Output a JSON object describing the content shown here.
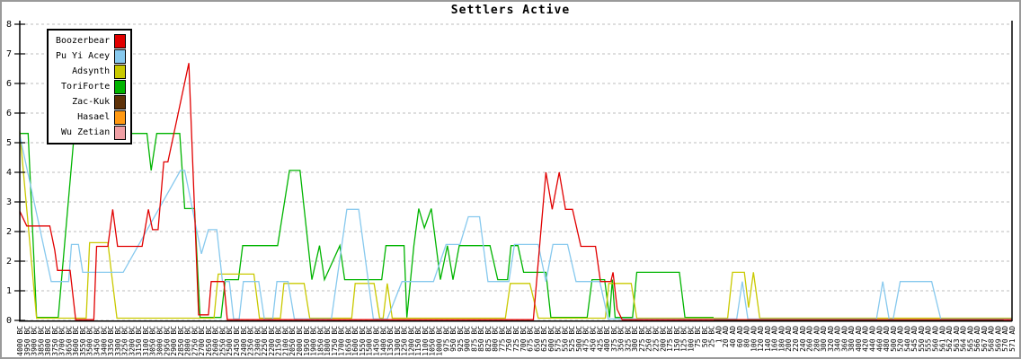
{
  "title": "Settlers Active",
  "legend": [
    {
      "name": "Boozerbear",
      "color": "#e10000"
    },
    {
      "name": "Pu Yi Acey",
      "color": "#87c9ee"
    },
    {
      "name": "Adsynth",
      "color": "#c9c900"
    },
    {
      "name": "ToriForte",
      "color": "#00b400"
    },
    {
      "name": "Zac-Kuk",
      "color": "#5e3209"
    },
    {
      "name": "Hasael",
      "color": "#ff9912"
    },
    {
      "name": "Wu Zetian",
      "color": "#f0a0a5"
    }
  ],
  "chart_data": {
    "type": "line",
    "title": "Settlers Active",
    "ylim": [
      0,
      8
    ],
    "grid": "horizontal-dashed",
    "legend_position": "top-left-inside",
    "y_tick_values": [
      0,
      0.8,
      1.6,
      2.4,
      3.2,
      4.0,
      4.8,
      5.6,
      6.4,
      7.2,
      8.0
    ],
    "y_tick_labels": [
      "0",
      "1",
      "2",
      "2",
      "3",
      "4",
      "5",
      "6",
      "6",
      "7",
      "8"
    ],
    "x_labels": [
      "4000 BC",
      "3950 BC",
      "3900 BC",
      "3850 BC",
      "3800 BC",
      "3750 BC",
      "3700 BC",
      "3650 BC",
      "3600 BC",
      "3550 BC",
      "3500 BC",
      "3450 BC",
      "3400 BC",
      "3350 BC",
      "3300 BC",
      "3250 BC",
      "3200 BC",
      "3150 BC",
      "3100 BC",
      "3050 BC",
      "3000 BC",
      "2950 BC",
      "2900 BC",
      "2850 BC",
      "2800 BC",
      "2750 BC",
      "2700 BC",
      "2650 BC",
      "2600 BC",
      "2550 BC",
      "2500 BC",
      "2450 BC",
      "2400 BC",
      "2350 BC",
      "2300 BC",
      "2250 BC",
      "2200 BC",
      "2150 BC",
      "2100 BC",
      "2050 BC",
      "2000 BC",
      "1950 BC",
      "1900 BC",
      "1850 BC",
      "1800 BC",
      "1750 BC",
      "1700 BC",
      "1650 BC",
      "1600 BC",
      "1550 BC",
      "1500 BC",
      "1450 BC",
      "1400 BC",
      "1350 BC",
      "1300 BC",
      "1250 BC",
      "1200 BC",
      "1150 BC",
      "1100 BC",
      "1050 BC",
      "1000 BC",
      "975 BC",
      "950 BC",
      "925 BC",
      "900 BC",
      "875 BC",
      "850 BC",
      "825 BC",
      "800 BC",
      "775 BC",
      "750 BC",
      "725 BC",
      "700 BC",
      "675 BC",
      "650 BC",
      "625 BC",
      "600 BC",
      "575 BC",
      "550 BC",
      "525 BC",
      "500 BC",
      "475 BC",
      "450 BC",
      "425 BC",
      "400 BC",
      "375 BC",
      "350 BC",
      "325 BC",
      "300 BC",
      "275 BC",
      "250 BC",
      "225 BC",
      "200 BC",
      "175 BC",
      "150 BC",
      "125 BC",
      "100 BC",
      "75 BC",
      "50 BC",
      "25 BC",
      "1 AD",
      "20 AD",
      "40 AD",
      "60 AD",
      "80 AD",
      "100 AD",
      "120 AD",
      "140 AD",
      "160 AD",
      "180 AD",
      "200 AD",
      "220 AD",
      "240 AD",
      "260 AD",
      "280 AD",
      "300 AD",
      "320 AD",
      "340 AD",
      "360 AD",
      "380 AD",
      "400 AD",
      "420 AD",
      "440 AD",
      "460 AD",
      "480 AD",
      "500 AD",
      "520 AD",
      "540 AD",
      "545 AD",
      "550 AD",
      "555 AD",
      "560 AD",
      "561 AD",
      "562 AD",
      "563 AD",
      "564 AD",
      "565 AD",
      "566 AD",
      "567 AD",
      "568 AD",
      "569 AD",
      "570 AD",
      "571 AD"
    ],
    "series": [
      {
        "name": "ToriForte",
        "color": "#00b400",
        "points": [
          [
            0,
            5.05
          ],
          [
            1.2,
            5.05
          ],
          [
            2.4,
            0.08
          ],
          [
            5.5,
            0.08
          ],
          [
            7.8,
            5.05
          ],
          [
            18.2,
            5.05
          ],
          [
            18.8,
            4.05
          ],
          [
            19.6,
            5.05
          ],
          [
            22.9,
            5.05
          ],
          [
            23.6,
            3.02
          ],
          [
            25,
            3.02
          ],
          [
            25.8,
            0.08
          ],
          [
            28.8,
            0.08
          ],
          [
            29.4,
            1.1
          ],
          [
            31.3,
            1.1
          ],
          [
            31.9,
            2.02
          ],
          [
            36.9,
            2.02
          ],
          [
            38.6,
            4.05
          ],
          [
            40.1,
            4.05
          ],
          [
            41.8,
            1.1
          ],
          [
            42.9,
            2.02
          ],
          [
            43.6,
            1.1
          ],
          [
            45.8,
            2.02
          ],
          [
            46.5,
            1.1
          ],
          [
            51.8,
            1.1
          ],
          [
            52.4,
            2.02
          ],
          [
            55,
            2.02
          ],
          [
            55.4,
            0.08
          ],
          [
            56.4,
            2.02
          ],
          [
            57.1,
            3.02
          ],
          [
            57.9,
            2.5
          ],
          [
            58.9,
            3.02
          ],
          [
            60.2,
            1.1
          ],
          [
            61.2,
            2.02
          ],
          [
            62,
            1.1
          ],
          [
            62.9,
            2.02
          ],
          [
            67.3,
            2.02
          ],
          [
            68.4,
            1.1
          ],
          [
            69.8,
            1.1
          ],
          [
            70.3,
            2.02
          ],
          [
            71.3,
            2.02
          ],
          [
            72.1,
            1.3
          ],
          [
            75.3,
            1.3
          ],
          [
            76,
            0.08
          ],
          [
            81.2,
            0.08
          ],
          [
            81.9,
            1.1
          ],
          [
            83.7,
            1.1
          ],
          [
            84.4,
            0.08
          ],
          [
            84.8,
            1.1
          ],
          [
            85.2,
            0.08
          ],
          [
            87.7,
            0.08
          ],
          [
            88.3,
            1.3
          ],
          [
            94.4,
            1.3
          ],
          [
            95.2,
            0.08
          ],
          [
            99.3,
            0.08
          ]
        ]
      },
      {
        "name": "Adsynth",
        "color": "#c9c900",
        "points": [
          [
            0,
            5.1
          ],
          [
            2.4,
            0.06
          ],
          [
            9.5,
            0.06
          ],
          [
            10,
            2.1
          ],
          [
            12.6,
            2.1
          ],
          [
            13.3,
            1.0
          ],
          [
            13.9,
            0.06
          ],
          [
            27.8,
            0.06
          ],
          [
            28.4,
            1.25
          ],
          [
            33.5,
            1.25
          ],
          [
            34.3,
            0.06
          ],
          [
            37.3,
            0.06
          ],
          [
            37.8,
            1.0
          ],
          [
            40.7,
            1.0
          ],
          [
            41.5,
            0.06
          ],
          [
            47.5,
            0.06
          ],
          [
            48,
            1.0
          ],
          [
            50.7,
            1.0
          ],
          [
            51.5,
            0.06
          ],
          [
            52,
            0.06
          ],
          [
            52.6,
            1.0
          ],
          [
            53.3,
            0.06
          ],
          [
            69.5,
            0.06
          ],
          [
            70.2,
            1.0
          ],
          [
            73,
            1.0
          ],
          [
            74.2,
            0.06
          ],
          [
            83.8,
            0.06
          ],
          [
            84.3,
            1.0
          ],
          [
            87.5,
            1.0
          ],
          [
            88.3,
            0.06
          ],
          [
            101.3,
            0.06
          ],
          [
            102,
            1.3
          ],
          [
            103.7,
            1.3
          ],
          [
            104.3,
            0.35
          ],
          [
            105,
            1.3
          ],
          [
            105.9,
            0.06
          ],
          [
            142,
            0.06
          ]
        ]
      },
      {
        "name": "Pu Yi Acey",
        "color": "#87c9ee",
        "points": [
          [
            0,
            5.0
          ],
          [
            4.5,
            1.05
          ],
          [
            7,
            1.05
          ],
          [
            7.4,
            2.05
          ],
          [
            8.4,
            2.05
          ],
          [
            9,
            1.3
          ],
          [
            14.8,
            1.3
          ],
          [
            23,
            4.05
          ],
          [
            23.6,
            4.05
          ],
          [
            26,
            1.8
          ],
          [
            27,
            2.45
          ],
          [
            28.2,
            2.45
          ],
          [
            29,
            1.05
          ],
          [
            30,
            1.05
          ],
          [
            30.6,
            0.04
          ],
          [
            31.4,
            0.04
          ],
          [
            32,
            1.05
          ],
          [
            34.2,
            1.05
          ],
          [
            35,
            0.04
          ],
          [
            36.2,
            0.04
          ],
          [
            36.8,
            1.05
          ],
          [
            38.4,
            1.05
          ],
          [
            39.3,
            0.04
          ],
          [
            44.6,
            0.04
          ],
          [
            46.8,
            3.0
          ],
          [
            48.5,
            3.0
          ],
          [
            50.6,
            0.04
          ],
          [
            52.6,
            0.04
          ],
          [
            54.7,
            1.05
          ],
          [
            59.2,
            1.05
          ],
          [
            61,
            2.05
          ],
          [
            63,
            2.05
          ],
          [
            64.2,
            2.8
          ],
          [
            65.8,
            2.8
          ],
          [
            67,
            1.05
          ],
          [
            70,
            1.05
          ],
          [
            70.8,
            2.05
          ],
          [
            74.2,
            2.05
          ],
          [
            75.3,
            1.05
          ],
          [
            76.3,
            2.05
          ],
          [
            78.4,
            2.05
          ],
          [
            79.6,
            1.05
          ],
          [
            83,
            1.05
          ],
          [
            84.2,
            0.04
          ],
          [
            102.6,
            0.04
          ],
          [
            103.4,
            1.05
          ],
          [
            104.2,
            0.04
          ],
          [
            122.6,
            0.04
          ],
          [
            123.5,
            1.05
          ],
          [
            124.4,
            0.04
          ],
          [
            125,
            0.04
          ],
          [
            126,
            1.05
          ],
          [
            130.5,
            1.05
          ],
          [
            131.8,
            0.04
          ],
          [
            142,
            0.04
          ]
        ]
      },
      {
        "name": "Boozerbear",
        "color": "#e10000",
        "points": [
          [
            0,
            2.95
          ],
          [
            1,
            2.55
          ],
          [
            4.3,
            2.55
          ],
          [
            5,
            1.9
          ],
          [
            5.4,
            1.35
          ],
          [
            7.2,
            1.35
          ],
          [
            8,
            0.02
          ],
          [
            10.6,
            0.02
          ],
          [
            11,
            2.0
          ],
          [
            12.6,
            2.0
          ],
          [
            13.3,
            3.0
          ],
          [
            14,
            2.0
          ],
          [
            17.5,
            2.0
          ],
          [
            18.4,
            3.0
          ],
          [
            19,
            2.45
          ],
          [
            19.8,
            2.45
          ],
          [
            20.6,
            4.28
          ],
          [
            21.2,
            4.28
          ],
          [
            24.2,
            6.95
          ],
          [
            25.6,
            0.15
          ],
          [
            27,
            0.15
          ],
          [
            27.4,
            1.05
          ],
          [
            29.2,
            1.05
          ],
          [
            29.7,
            0.02
          ],
          [
            73.5,
            0.02
          ],
          [
            75.3,
            4.0
          ],
          [
            76.2,
            3.0
          ],
          [
            77.2,
            4.0
          ],
          [
            78.1,
            3.0
          ],
          [
            79.1,
            3.0
          ],
          [
            80.3,
            2.0
          ],
          [
            82.4,
            2.0
          ],
          [
            83.1,
            1.05
          ],
          [
            84.6,
            1.05
          ],
          [
            84.9,
            1.3
          ],
          [
            85.5,
            0.3
          ],
          [
            86.2,
            0.02
          ],
          [
            142,
            0.02
          ]
        ]
      },
      {
        "name": "Zac-Kuk",
        "color": "#5e3209",
        "points": [
          [
            99.3,
            0
          ],
          [
            140.8,
            0
          ]
        ]
      },
      {
        "name": "Hasael",
        "color": "#ff9912",
        "points": []
      },
      {
        "name": "Wu Zetian",
        "color": "#f0a0a5",
        "points": []
      }
    ]
  }
}
